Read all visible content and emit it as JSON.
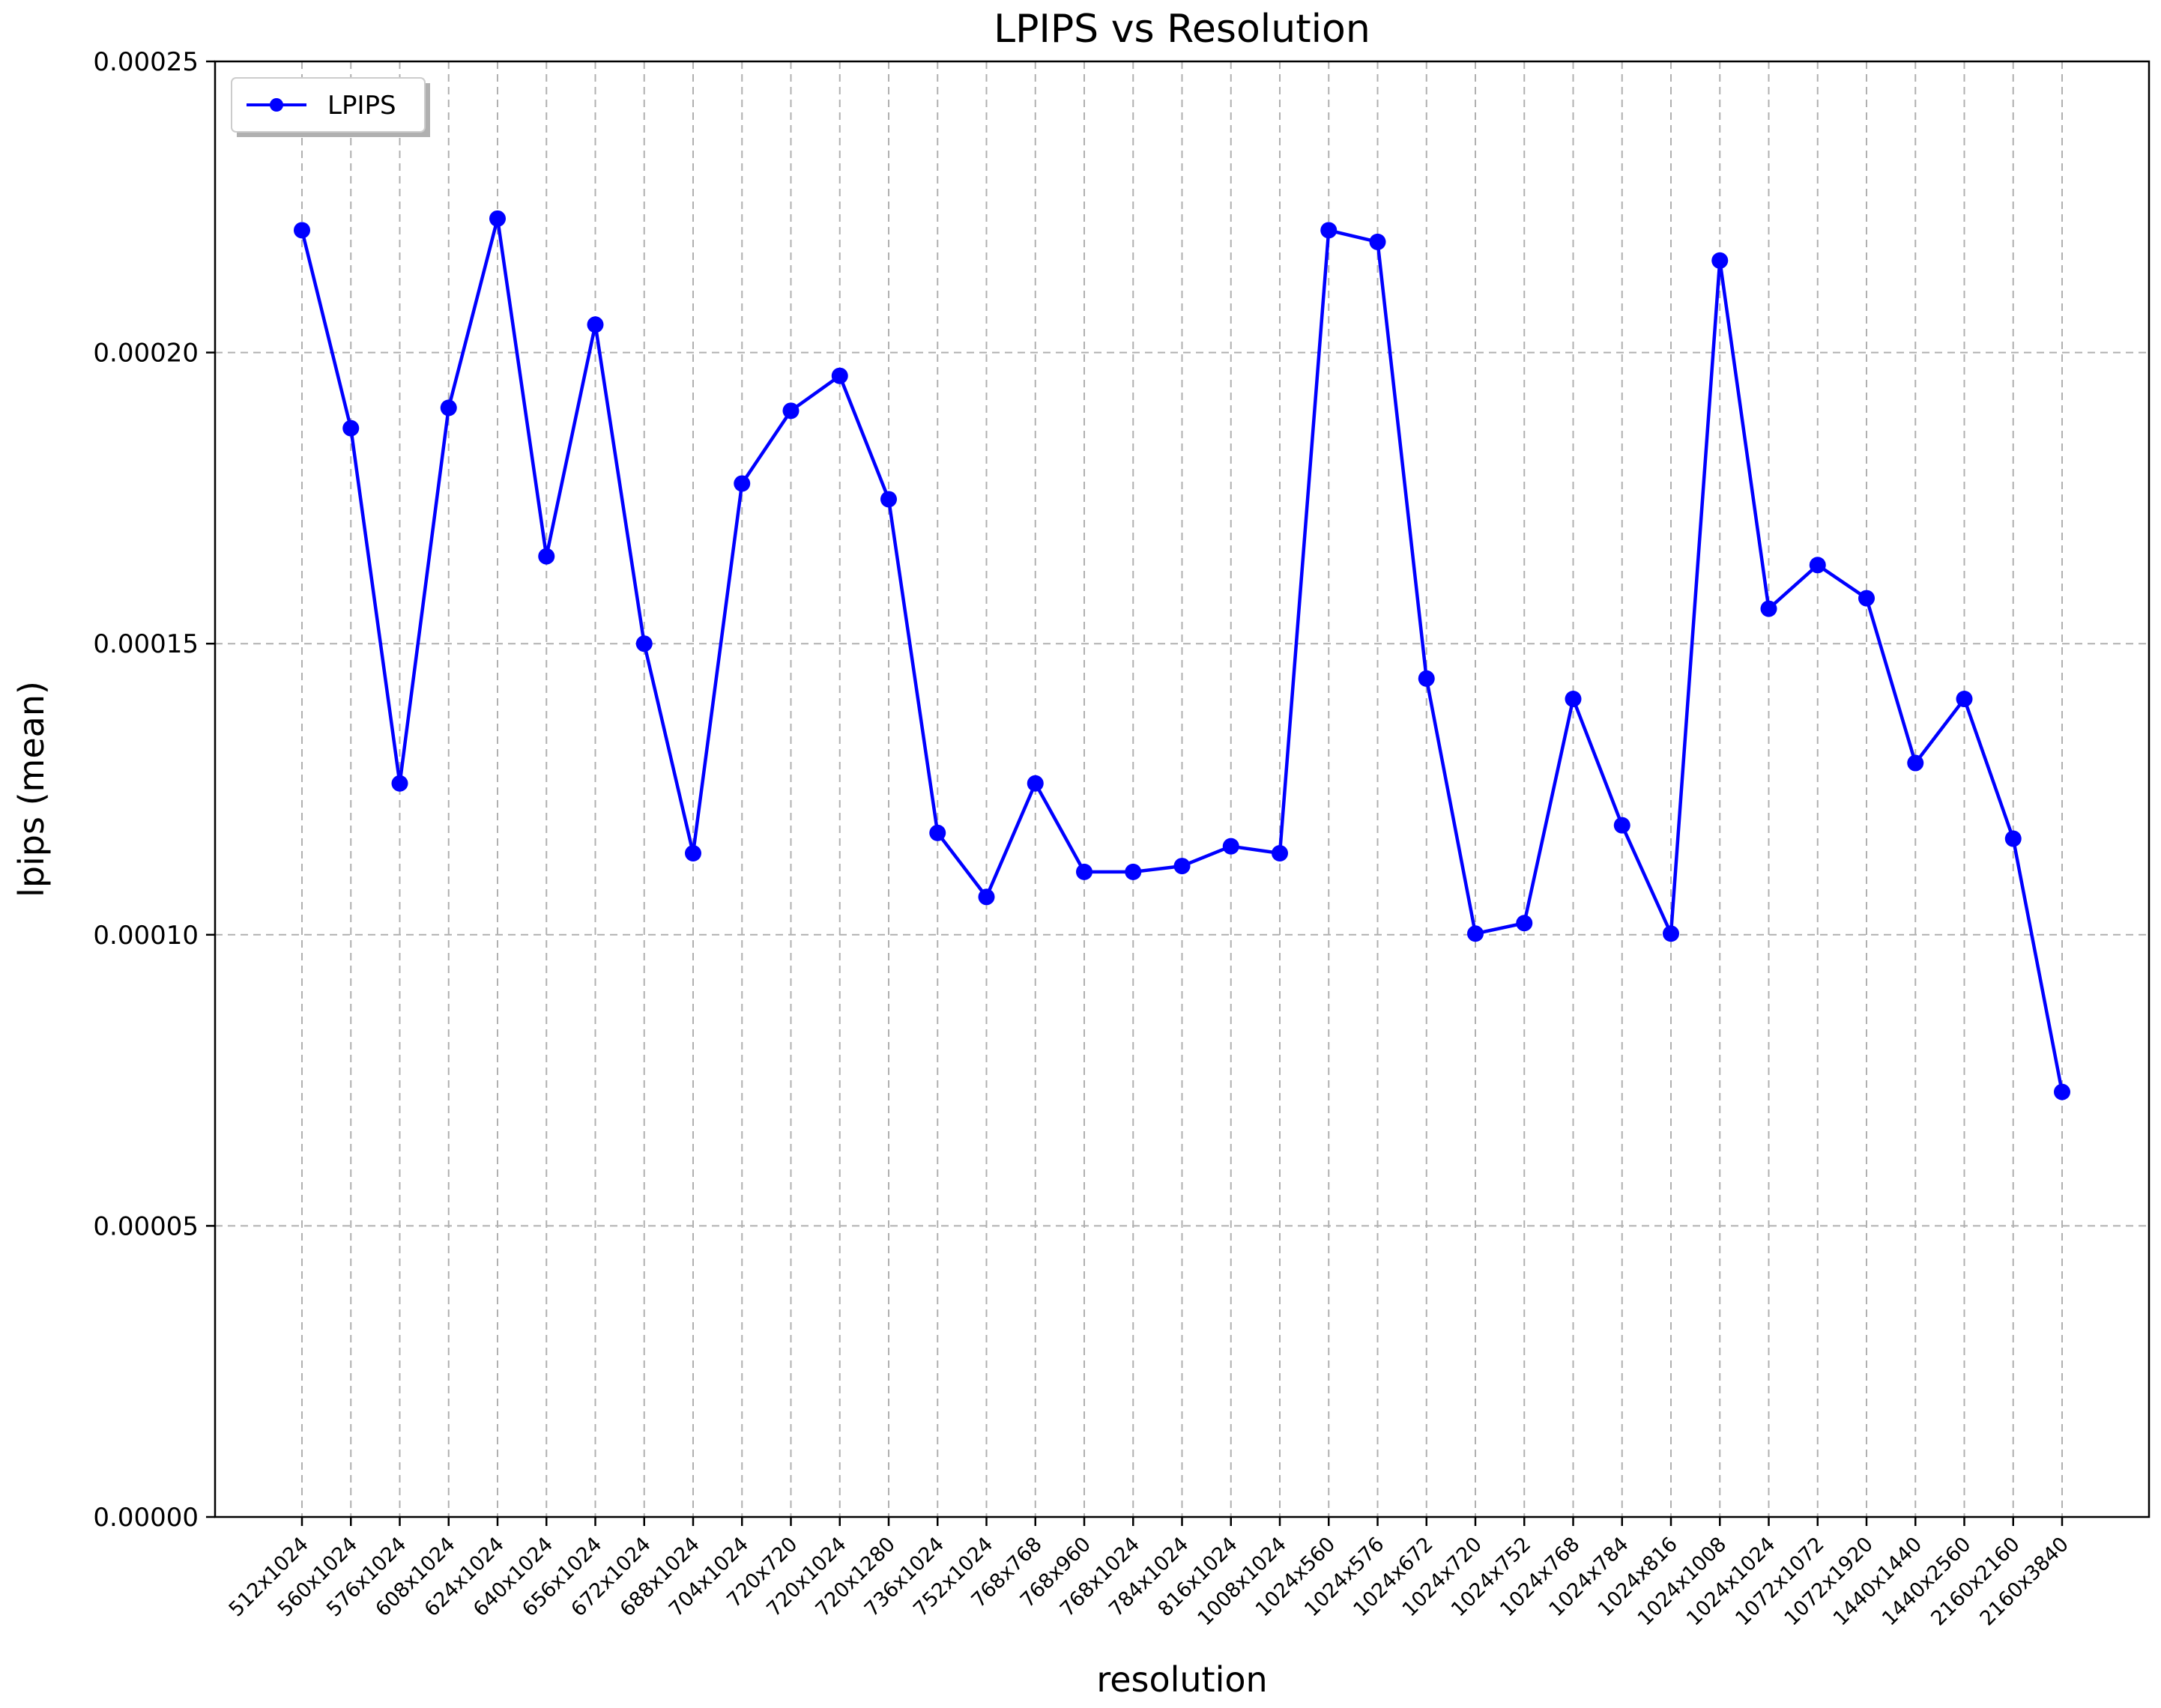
{
  "chart_data": {
    "type": "line",
    "title": "LPIPS vs Resolution",
    "xlabel": "resolution",
    "ylabel": "lpips (mean)",
    "ylim": [
      0,
      0.00025
    ],
    "yticks": [
      "0.00000",
      "0.00005",
      "0.00010",
      "0.00015",
      "0.00020",
      "0.00025"
    ],
    "ytick_values": [
      0,
      5e-05,
      0.0001,
      0.00015,
      0.0002,
      0.00025
    ],
    "grid": true,
    "legend_position": "top-left",
    "categories": [
      "512x1024",
      "560x1024",
      "576x1024",
      "608x1024",
      "624x1024",
      "640x1024",
      "656x1024",
      "672x1024",
      "688x1024",
      "704x1024",
      "720x720",
      "720x1024",
      "720x1280",
      "736x1024",
      "752x1024",
      "768x768",
      "768x960",
      "768x1024",
      "784x1024",
      "816x1024",
      "1008x1024",
      "1024x560",
      "1024x576",
      "1024x672",
      "1024x720",
      "1024x752",
      "1024x768",
      "1024x784",
      "1024x816",
      "1024x1008",
      "1024x1024",
      "1072x1072",
      "1072x1920",
      "1440x1440",
      "1440x2560",
      "2160x2160",
      "2160x3840"
    ],
    "series": [
      {
        "name": "LPIPS",
        "color": "#0000ff",
        "marker": "circle",
        "values": [
          0.000221,
          0.000187,
          0.000126,
          0.0001905,
          0.000223,
          0.000165,
          0.0002048,
          0.00015,
          0.000114,
          0.0001775,
          0.00019,
          0.000196,
          0.0001748,
          0.0001175,
          0.0001065,
          0.000126,
          0.0001108,
          0.0001108,
          0.0001118,
          0.0001152,
          0.000114,
          0.000221,
          0.000219,
          0.000144,
          0.0001002,
          0.000102,
          0.0001405,
          0.0001188,
          0.0001002,
          0.0002158,
          0.000156,
          0.0001635,
          0.0001578,
          0.0001295,
          0.0001405,
          0.0001165,
          7.3e-05
        ]
      }
    ]
  }
}
